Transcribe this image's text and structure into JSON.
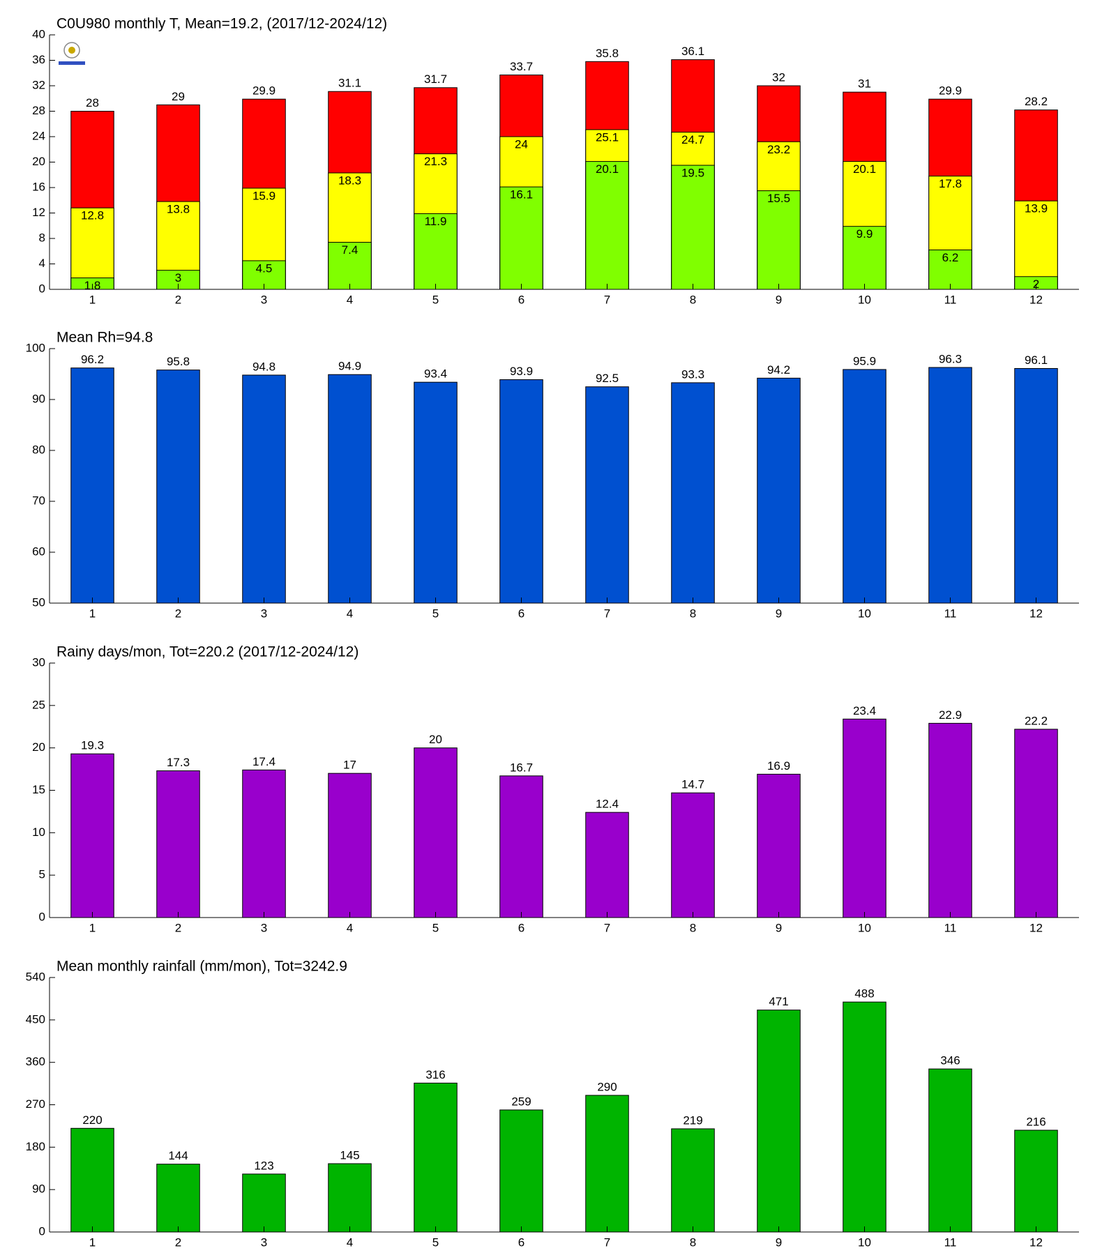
{
  "chart_data": [
    {
      "type": "bar",
      "title": "C0U980 monthly T, Mean=19.2, (2017/12-2024/12)",
      "categories": [
        1,
        2,
        3,
        4,
        5,
        6,
        7,
        8,
        9,
        10,
        11,
        12
      ],
      "series": [
        {
          "color": "#ff0000",
          "values": [
            28,
            29,
            29.9,
            31.1,
            31.7,
            33.7,
            35.8,
            36.1,
            32,
            31,
            29.9,
            28.2
          ]
        },
        {
          "color": "#ffff00",
          "values": [
            12.8,
            13.8,
            15.9,
            18.3,
            21.3,
            24,
            25.1,
            24.7,
            23.2,
            20.1,
            17.8,
            13.9
          ]
        },
        {
          "color": "#80ff00",
          "values": [
            1.8,
            3,
            4.5,
            7.4,
            11.9,
            16.1,
            20.1,
            19.5,
            15.5,
            9.9,
            6.2,
            2
          ]
        }
      ],
      "ylim": [
        0,
        40
      ],
      "yticks": [
        0,
        4,
        8,
        12,
        16,
        20,
        24,
        28,
        32,
        36,
        40
      ],
      "grid": false
    },
    {
      "type": "bar",
      "title": "Mean Rh=94.8",
      "categories": [
        1,
        2,
        3,
        4,
        5,
        6,
        7,
        8,
        9,
        10,
        11,
        12
      ],
      "values": [
        96.2,
        95.8,
        94.8,
        94.9,
        93.4,
        93.9,
        92.5,
        93.3,
        94.2,
        95.9,
        96.3,
        96.1
      ],
      "color": "#0050d0",
      "ylim": [
        50,
        100
      ],
      "yticks": [
        50,
        60,
        70,
        80,
        90,
        100
      ],
      "grid": false
    },
    {
      "type": "bar",
      "title": "Rainy days/mon, Tot=220.2 (2017/12-2024/12)",
      "categories": [
        1,
        2,
        3,
        4,
        5,
        6,
        7,
        8,
        9,
        10,
        11,
        12
      ],
      "values": [
        19.3,
        17.3,
        17.4,
        17,
        20,
        16.7,
        12.4,
        14.7,
        16.9,
        23.4,
        22.9,
        22.2
      ],
      "color": "#9900cc",
      "ylim": [
        0,
        30
      ],
      "yticks": [
        0,
        5,
        10,
        15,
        20,
        25,
        30
      ],
      "grid": false
    },
    {
      "type": "bar",
      "title": "Mean monthly rainfall (mm/mon), Tot=3242.9",
      "categories": [
        1,
        2,
        3,
        4,
        5,
        6,
        7,
        8,
        9,
        10,
        11,
        12
      ],
      "values": [
        220,
        144,
        123,
        145,
        316,
        259,
        290,
        219,
        471,
        488,
        346,
        216
      ],
      "color": "#00b400",
      "ylim": [
        0,
        540
      ],
      "yticks": [
        0,
        90,
        180,
        270,
        360,
        450,
        540
      ],
      "grid": false
    }
  ]
}
